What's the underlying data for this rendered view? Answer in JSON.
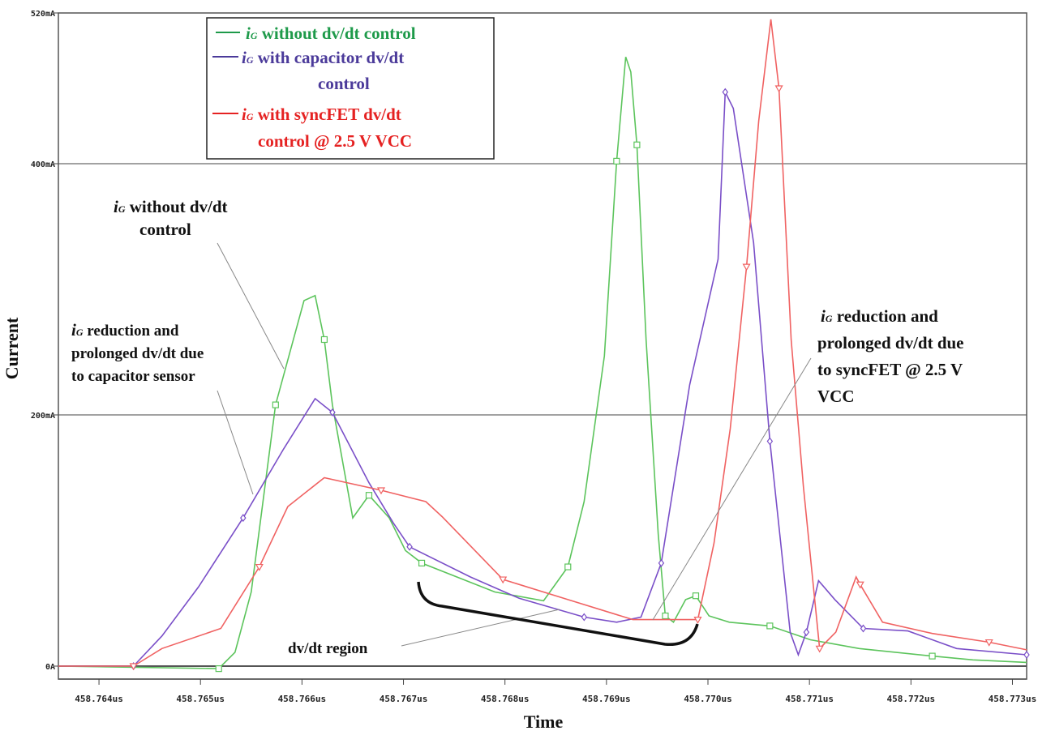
{
  "chart_data": {
    "type": "line",
    "xlabel": "Time",
    "ylabel": "Current",
    "xlim": [
      458.7636,
      458.77314
    ],
    "ylim": [
      0,
      520
    ],
    "y_unit": "mA",
    "x_ticks": [
      458.764,
      458.765,
      458.766,
      458.767,
      458.768,
      458.769,
      458.77,
      458.771,
      458.772,
      458.773
    ],
    "x_tick_labels": [
      "458.764us",
      "458.765us",
      "458.766us",
      "458.767us",
      "458.768us",
      "458.769us",
      "458.770us",
      "458.771us",
      "458.772us",
      "458.773us"
    ],
    "y_ticks": [
      0,
      200,
      400,
      520
    ],
    "y_tick_labels": [
      "0A",
      "200mA",
      "400mA",
      "520mA"
    ],
    "grid": "horizontal",
    "legend": {
      "placement": "top-left",
      "entries": [
        {
          "lines": [
            "without dv/dt control"
          ],
          "color": "#1e9a4a"
        },
        {
          "lines": [
            "with capacitor  dv/dt",
            "control"
          ],
          "color": "#4b3a9a"
        },
        {
          "lines": [
            "with syncFET dv/dt",
            "control @ 2.5 V VCC"
          ],
          "color": "#e52222"
        }
      ],
      "symbol": "i",
      "subscript": "G"
    },
    "series": [
      {
        "name": "iG without dv/dt control",
        "color": "#5cc45c",
        "marker": "square",
        "x": [
          458.7636,
          458.76518,
          458.76534,
          458.7655,
          458.76574,
          458.76602,
          458.76613,
          458.76622,
          458.7663,
          458.7665,
          458.76666,
          458.76686,
          458.76702,
          458.76718,
          458.7679,
          458.76838,
          458.76862,
          458.76878,
          458.76898,
          458.7691,
          458.76919,
          458.76924,
          458.7693,
          458.76939,
          458.76951,
          458.76958,
          458.76966,
          458.76978,
          458.76988,
          458.77001,
          458.77021,
          458.77061,
          458.77101,
          458.77149,
          458.77221,
          458.77261,
          458.77314
        ],
        "y": [
          0,
          -2,
          11,
          59,
          208,
          291,
          295,
          260,
          208,
          118,
          136,
          118,
          92,
          82,
          59,
          52,
          79,
          131,
          247,
          402,
          485,
          473,
          415,
          260,
          105,
          40,
          35,
          53,
          56,
          40,
          35,
          32,
          21,
          14,
          8,
          5,
          3
        ]
      },
      {
        "name": "iG with capacitor dv/dt control",
        "color": "#7a4fc8",
        "marker": "diamond",
        "x": [
          458.7636,
          458.76434,
          458.76462,
          458.76498,
          458.76542,
          458.76582,
          458.76613,
          458.7663,
          458.76666,
          458.7669,
          458.76706,
          458.76766,
          458.76814,
          458.76878,
          458.7691,
          458.76934,
          458.76954,
          458.76982,
          458.7701,
          458.77017,
          458.77025,
          458.77045,
          458.77061,
          458.77081,
          458.77089,
          458.77097,
          458.77109,
          458.77125,
          458.77153,
          458.77197,
          458.77245,
          458.77314
        ],
        "y": [
          0,
          0,
          24,
          63,
          118,
          173,
          213,
          202,
          146,
          114,
          95,
          71,
          54,
          39,
          35,
          39,
          82,
          224,
          324,
          457,
          444,
          337,
          179,
          27,
          9,
          27,
          68,
          53,
          30,
          28,
          14,
          9
        ]
      },
      {
        "name": "iG with syncFET dv/dt control @ 2.5 V VCC",
        "color": "#f06262",
        "marker": "triangle",
        "x": [
          458.7636,
          458.76434,
          458.76462,
          458.7652,
          458.76558,
          458.76586,
          458.76622,
          458.76678,
          458.76722,
          458.76738,
          458.76798,
          458.76862,
          458.76926,
          458.7699,
          458.77006,
          458.77022,
          458.77038,
          458.7705,
          458.77062,
          458.7707,
          458.77082,
          458.77094,
          458.7711,
          458.77126,
          458.77146,
          458.7715,
          458.77172,
          458.77221,
          458.77277,
          458.77314
        ],
        "y": [
          0,
          0,
          14,
          30,
          79,
          127,
          150,
          140,
          131,
          119,
          69,
          53,
          37,
          37,
          98,
          189,
          318,
          434,
          515,
          460,
          260,
          143,
          14,
          27,
          71,
          65,
          35,
          26,
          19,
          13
        ]
      }
    ],
    "annotations": [
      {
        "lines": [
          "without dv/dt",
          "control"
        ],
        "symbol": "i",
        "subscript": "G"
      },
      {
        "lines": [
          "reduction and",
          "prolonged dv/dt due",
          "to capacitor sensor"
        ],
        "symbol": "i",
        "subscript": "G"
      },
      {
        "lines": [
          "reduction and",
          "prolonged dv/dt due",
          "to syncFET @ 2.5 V",
          "VCC"
        ],
        "symbol": "i",
        "subscript": "G"
      },
      {
        "lines": [
          "dv/dt region"
        ]
      }
    ]
  }
}
